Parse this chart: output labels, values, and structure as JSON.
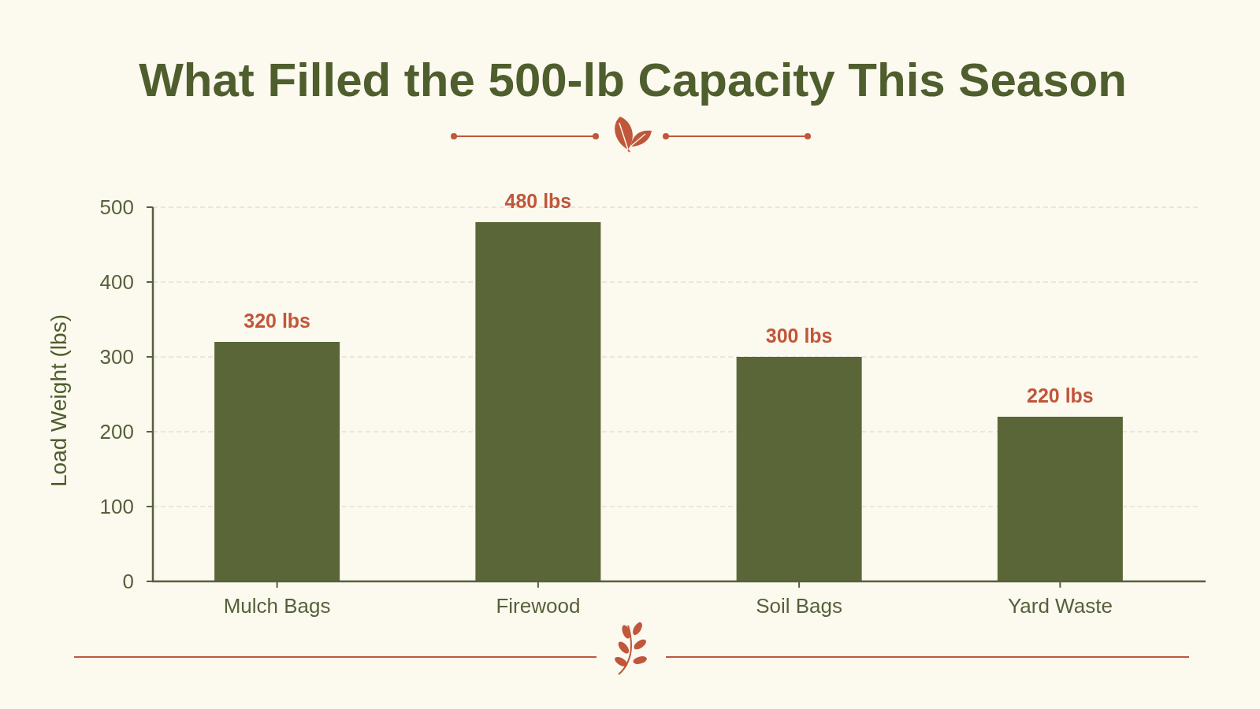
{
  "chart_data": {
    "type": "bar",
    "title": "What Filled the 500-lb Capacity This Season",
    "ylabel": "Load Weight (lbs)",
    "categories": [
      "Mulch Bags",
      "Firewood",
      "Soil Bags",
      "Yard Waste"
    ],
    "values": [
      320,
      480,
      300,
      220
    ],
    "value_labels": [
      "320 lbs",
      "480 lbs",
      "300 lbs",
      "220 lbs"
    ],
    "color": "#5a6637",
    "ylim": [
      0,
      500
    ],
    "yticks": [
      0,
      100,
      200,
      300,
      400,
      500
    ],
    "grid": "y"
  }
}
